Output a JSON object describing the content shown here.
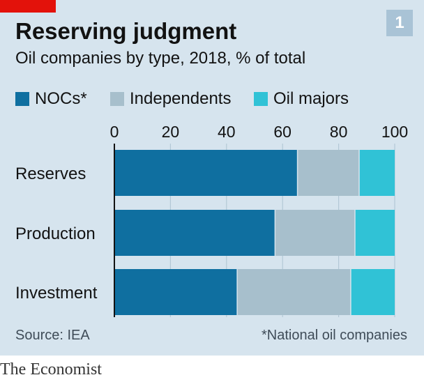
{
  "badge": "1",
  "brand": "The Economist",
  "chart_data": {
    "type": "bar",
    "orientation": "horizontal",
    "stacked": true,
    "title": "Reserving judgment",
    "subtitle": "Oil companies by type, 2018, % of total",
    "categories": [
      "Reserves",
      "Production",
      "Investment"
    ],
    "series": [
      {
        "name": "NOCs*",
        "values": [
          65.5,
          57.5,
          44
        ],
        "color": "#0f6fa0"
      },
      {
        "name": "Independents",
        "values": [
          22,
          28.5,
          40.5
        ],
        "color": "#a7bfcc"
      },
      {
        "name": "Oil majors",
        "values": [
          12.5,
          14,
          15.5
        ],
        "color": "#30c2d6"
      }
    ],
    "xlim": [
      0,
      100
    ],
    "xticks": [
      "0",
      "20",
      "40",
      "60",
      "80",
      "100"
    ],
    "x_axis_position": "top",
    "grid": true,
    "legend_position": "top-left",
    "source": "Source: IEA",
    "footnote": "*National oil companies"
  }
}
